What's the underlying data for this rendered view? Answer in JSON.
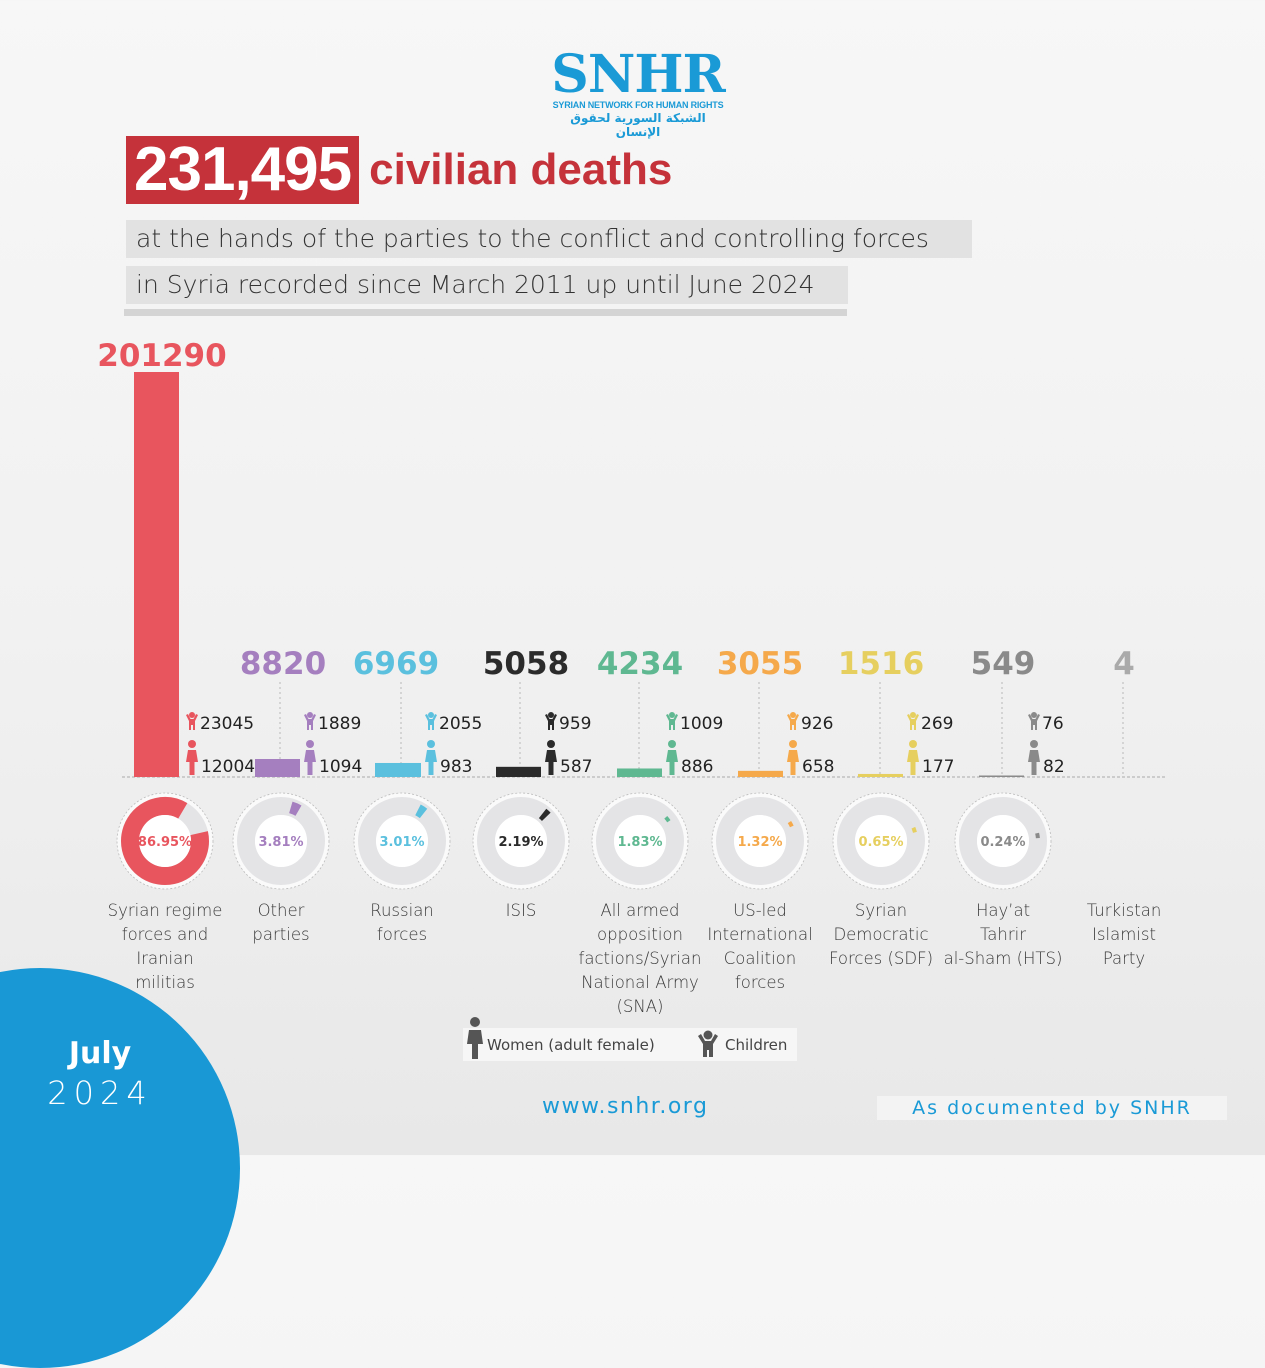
{
  "logo": {
    "mark": "SNHR",
    "english": "SYRIAN NETWORK FOR HUMAN RIGHTS",
    "arabic": "الشبكة السورية لحقوق الإنسان"
  },
  "headline": {
    "number": "231,495",
    "rest": "civilian deaths",
    "sub_line1": "at the hands of the parties to the conflict and controlling forces",
    "sub_line2": "in Syria recorded since March 2011 up until June 2024"
  },
  "chart_data": {
    "type": "bar",
    "title": "231,495 civilian deaths",
    "subtitle": "at the hands of the parties to the conflict and controlling forces in Syria recorded since March 2011 up until June 2024",
    "total": 231495,
    "categories": [
      "Syrian regime forces and Iranian militias",
      "Other parties",
      "Russian forces",
      "ISIS",
      "All armed opposition factions/Syrian National Army (SNA)",
      "US-led International Coalition forces",
      "Syrian Democratic Forces (SDF)",
      "Hay’at Tahrir al-Sham (HTS)",
      "Turkistan Islamist Party"
    ],
    "label_lines": [
      [
        "Syrian regime",
        "forces and Iranian",
        "militias"
      ],
      [
        "Other",
        "parties"
      ],
      [
        "Russian",
        "forces"
      ],
      [
        "ISIS"
      ],
      [
        "All armed",
        "opposition",
        "factions/Syrian",
        "National Army (SNA)"
      ],
      [
        "US-led",
        "International",
        "Coalition",
        "forces"
      ],
      [
        "Syrian",
        "Democratic",
        "Forces (SDF)"
      ],
      [
        "Hay’at",
        "Tahrir",
        "al-Sham (HTS)"
      ],
      [
        "Turkistan",
        "Islamist",
        "Party"
      ]
    ],
    "series": [
      {
        "name": "Civilian deaths",
        "values": [
          201290,
          8820,
          6969,
          5058,
          4234,
          3055,
          1516,
          549,
          4
        ]
      },
      {
        "name": "Children",
        "values": [
          23045,
          1889,
          2055,
          959,
          1009,
          926,
          269,
          76,
          null
        ]
      },
      {
        "name": "Women (adult female)",
        "values": [
          12004,
          1094,
          983,
          587,
          886,
          658,
          177,
          82,
          null
        ]
      }
    ],
    "percentages": [
      86.95,
      3.81,
      3.01,
      2.19,
      1.83,
      1.32,
      0.65,
      0.24,
      null
    ],
    "percent_labels": [
      "86.95%",
      "3.81%",
      "3.01%",
      "2.19%",
      "1.83%",
      "1.32%",
      "0.65%",
      "0.24%",
      ""
    ],
    "colors": [
      "#e8555e",
      "#a57fbf",
      "#5bc0de",
      "#2b2b2b",
      "#5fb891",
      "#f5a94b",
      "#e6cf5f",
      "#8a8a8a",
      "#aaaaaa"
    ],
    "legend": [
      {
        "icon": "woman-icon",
        "label": "Women (adult female)"
      },
      {
        "icon": "child-icon",
        "label": "Children"
      }
    ],
    "legend_placement": "bottom",
    "grid": false
  },
  "footer": {
    "month": "July",
    "year": "2024",
    "url": "www.snhr.org",
    "documented": "As documented by SNHR"
  }
}
